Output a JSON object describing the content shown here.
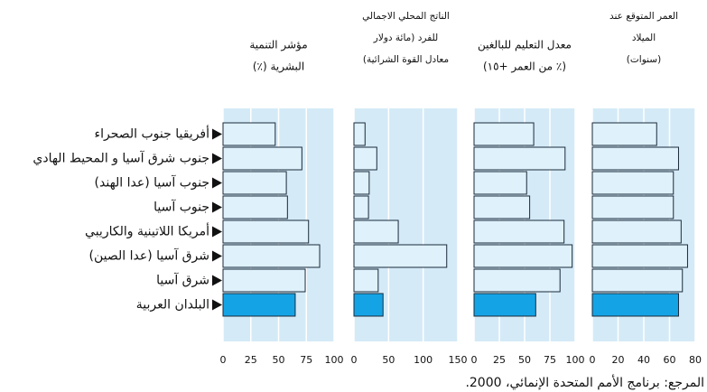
{
  "chart_data": {
    "type": "bar",
    "categories": [
      "أفريقيا جنوب الصحراء",
      "جنوب شرق آسيا و المحيط الهادي",
      "جنوب آسيا (عدا الهند)",
      "جنوب آسيا",
      "أمريكا اللاتينية والكاريبي",
      "شرق آسيا (عدا الصين)",
      "شرق آسيا",
      "البلدان العربية"
    ],
    "bar_colors": [
      "#dff1fb",
      "#dff1fb",
      "#dff1fb",
      "#dff1fb",
      "#dff1fb",
      "#dff1fb",
      "#dff1fb",
      "#14a4e6"
    ],
    "panel_color": "#d4eaf7",
    "grid": true,
    "panels": [
      {
        "title": [
          "مؤشر التنمية",
          "البشرية (٪)"
        ],
        "values": [
          47,
          71,
          57,
          58,
          77,
          87,
          74,
          65
        ],
        "xlim": [
          0,
          100
        ],
        "xticks": [
          0,
          25,
          50,
          75,
          100
        ]
      },
      {
        "title": [
          "الناتج المحلي الاجمالي",
          "للفرد (مائة دولار",
          "معادل القوة الشرائية)"
        ],
        "values": [
          16,
          33,
          22,
          21,
          64,
          134,
          35,
          42
        ],
        "xlim": [
          0,
          150
        ],
        "xticks": [
          0,
          50,
          100,
          150
        ]
      },
      {
        "title": [
          "معدل التعليم للبالغين",
          "(٪ من العمر +١٥)"
        ],
        "values": [
          59,
          90,
          52,
          55,
          89,
          97,
          85,
          61
        ],
        "xlim": [
          0,
          100
        ],
        "xticks": [
          0,
          25,
          50,
          75,
          100
        ]
      },
      {
        "title": [
          "العمر المتوقع عند",
          "الميلاد",
          "(سنوات)"
        ],
        "values": [
          50,
          67,
          63,
          63,
          69,
          74,
          70,
          67
        ],
        "xlim": [
          0,
          80
        ],
        "xticks": [
          0,
          20,
          40,
          60,
          80
        ]
      }
    ],
    "source": "المرجع: برنامج الأمم المتحدة الإنمائي، 2000."
  }
}
